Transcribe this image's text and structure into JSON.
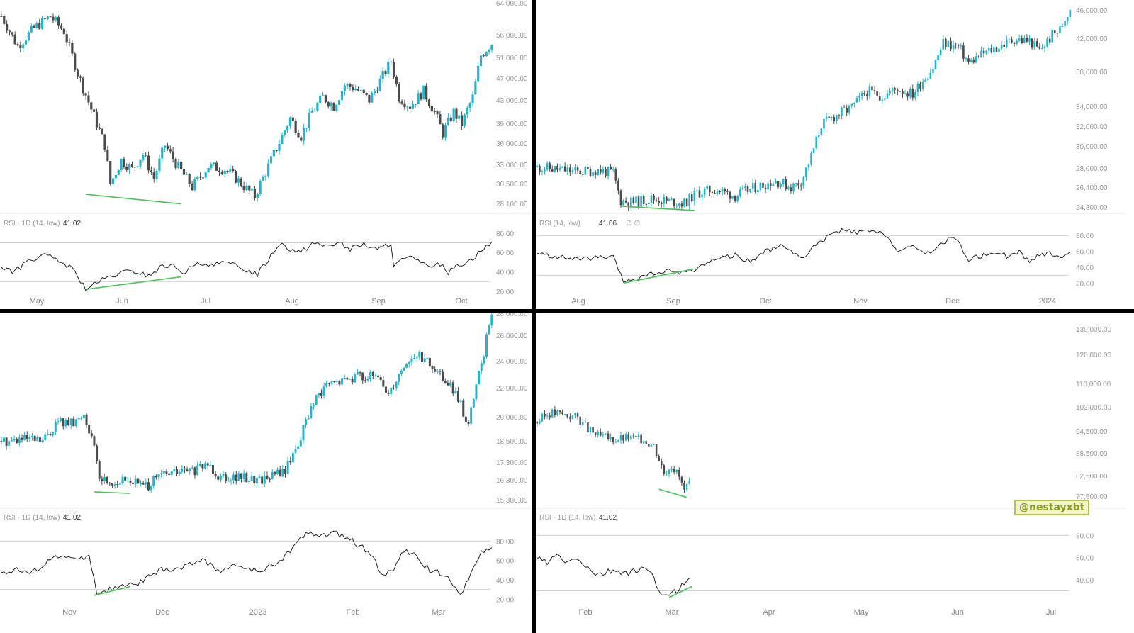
{
  "colors": {
    "up": "#26b4c6",
    "down": "#4b4b4b",
    "divergence": "#4cc15a",
    "rsi_line": "#222222",
    "grid": "#cfcfcf",
    "axis_text": "#9a9a9a",
    "separator": "#000000"
  },
  "watermark": "@nestayxbt",
  "chart_data": [
    {
      "type": "candlestick",
      "panel": "top-left",
      "price_ticks": [
        "64,000.00",
        "56,000.00",
        "51,000.00",
        "47,000.00",
        "43,000.00",
        "39,000.00",
        "36,000.00",
        "33,000.00",
        "30,500.00",
        "28,100.00"
      ],
      "price_range": [
        27000,
        64000
      ],
      "x_labels": [
        "May",
        "Jun",
        "Jul",
        "Aug",
        "Sep",
        "Oct"
      ],
      "price_path": [
        [
          0,
          60000
        ],
        [
          6,
          55000
        ],
        [
          12,
          58000
        ],
        [
          18,
          60000
        ],
        [
          23,
          57500
        ],
        [
          28,
          50500
        ],
        [
          33,
          44500
        ],
        [
          38,
          38500
        ],
        [
          40,
          32000
        ],
        [
          44,
          36000
        ],
        [
          48,
          34500
        ],
        [
          52,
          37000
        ],
        [
          56,
          33000
        ],
        [
          60,
          38500
        ],
        [
          64,
          35500
        ],
        [
          70,
          31500
        ],
        [
          76,
          35000
        ],
        [
          82,
          34500
        ],
        [
          86,
          33000
        ],
        [
          90,
          31200
        ],
        [
          93,
          30000
        ],
        [
          97,
          34000
        ],
        [
          101,
          38000
        ],
        [
          106,
          43000
        ],
        [
          110,
          40000
        ],
        [
          114,
          44000
        ],
        [
          118,
          46500
        ],
        [
          122,
          45000
        ],
        [
          126,
          48500
        ],
        [
          130,
          48000
        ],
        [
          135,
          46000
        ],
        [
          140,
          50000
        ],
        [
          143,
          52500
        ],
        [
          146,
          46500
        ],
        [
          150,
          45000
        ],
        [
          155,
          47500
        ],
        [
          159,
          44000
        ],
        [
          162,
          40500
        ],
        [
          166,
          44000
        ],
        [
          169,
          42000
        ],
        [
          173,
          46500
        ],
        [
          176,
          53500
        ],
        [
          180,
          55500
        ]
      ],
      "divergence_price": {
        "from": [
          31,
          30300
        ],
        "to": [
          66,
          28700
        ]
      },
      "rsi": {
        "label": "RSI · 1D (14, low)",
        "value": "41.02",
        "ticks": [
          "80.00",
          "60.00",
          "40.00",
          "20.00"
        ],
        "levels": [
          70,
          30
        ],
        "range": [
          20,
          85
        ],
        "path": [
          [
            0,
            45
          ],
          [
            5,
            40
          ],
          [
            10,
            52
          ],
          [
            15,
            57
          ],
          [
            20,
            53
          ],
          [
            25,
            45
          ],
          [
            28,
            36
          ],
          [
            31,
            22
          ],
          [
            36,
            30
          ],
          [
            42,
            37
          ],
          [
            48,
            41
          ],
          [
            54,
            36
          ],
          [
            60,
            47
          ],
          [
            64,
            45
          ],
          [
            67,
            40
          ],
          [
            72,
            47
          ],
          [
            78,
            49
          ],
          [
            84,
            48
          ],
          [
            90,
            42
          ],
          [
            94,
            38
          ],
          [
            98,
            53
          ],
          [
            102,
            70
          ],
          [
            106,
            64
          ],
          [
            110,
            60
          ],
          [
            114,
            70
          ],
          [
            118,
            67
          ],
          [
            124,
            70
          ],
          [
            128,
            63
          ],
          [
            133,
            69
          ],
          [
            138,
            62
          ],
          [
            143,
            70
          ],
          [
            144,
            48
          ],
          [
            150,
            55
          ],
          [
            156,
            45
          ],
          [
            160,
            50
          ],
          [
            164,
            40
          ],
          [
            168,
            48
          ],
          [
            172,
            52
          ],
          [
            176,
            62
          ],
          [
            180,
            70
          ]
        ],
        "divergence": {
          "from": [
            31,
            22
          ],
          "to": [
            66,
            35
          ]
        }
      }
    },
    {
      "type": "candlestick",
      "panel": "top-right",
      "price_ticks": [
        "46,000.00",
        "42,000.00",
        "38,000.00",
        "34,000.00",
        "32,000.00",
        "30,000.00",
        "28,000.00",
        "26,400.00",
        "24,800.00"
      ],
      "price_range": [
        24200,
        47200
      ],
      "x_labels": [
        "Aug",
        "Sep",
        "Oct",
        "Nov",
        "Dec",
        "2024"
      ],
      "price_path": [
        [
          0,
          29500
        ],
        [
          8,
          29300
        ],
        [
          16,
          29000
        ],
        [
          24,
          29200
        ],
        [
          30,
          28900
        ],
        [
          33,
          26000
        ],
        [
          38,
          25800
        ],
        [
          45,
          26200
        ],
        [
          52,
          25900
        ],
        [
          58,
          25700
        ],
        [
          63,
          26800
        ],
        [
          70,
          27200
        ],
        [
          78,
          26500
        ],
        [
          86,
          27400
        ],
        [
          94,
          28100
        ],
        [
          100,
          27400
        ],
        [
          104,
          28000
        ],
        [
          108,
          30600
        ],
        [
          112,
          34000
        ],
        [
          118,
          35000
        ],
        [
          124,
          35800
        ],
        [
          130,
          37500
        ],
        [
          136,
          37000
        ],
        [
          142,
          37800
        ],
        [
          148,
          37200
        ],
        [
          152,
          38700
        ],
        [
          156,
          40000
        ],
        [
          160,
          42600
        ],
        [
          166,
          42200
        ],
        [
          170,
          40500
        ],
        [
          176,
          41500
        ],
        [
          182,
          42200
        ],
        [
          188,
          43000
        ],
        [
          194,
          42800
        ],
        [
          198,
          41800
        ],
        [
          203,
          43400
        ],
        [
          206,
          44000
        ],
        [
          210,
          46300
        ]
      ],
      "divergence_price": {
        "from": [
          33,
          25400
        ],
        "to": [
          62,
          24950
        ]
      },
      "rsi": {
        "label": "RSI (14, low)",
        "value": "41.06",
        "suffix": "∅ ∅",
        "ticks": [
          "80.00",
          "60.00",
          "40.00",
          "20.00"
        ],
        "levels": [
          80,
          30
        ],
        "range": [
          15,
          90
        ],
        "path": [
          [
            0,
            57
          ],
          [
            8,
            53
          ],
          [
            16,
            50
          ],
          [
            24,
            52
          ],
          [
            30,
            52
          ],
          [
            34,
            22
          ],
          [
            40,
            27
          ],
          [
            46,
            32
          ],
          [
            52,
            35
          ],
          [
            58,
            34
          ],
          [
            62,
            36
          ],
          [
            66,
            45
          ],
          [
            72,
            52
          ],
          [
            78,
            55
          ],
          [
            84,
            47
          ],
          [
            90,
            60
          ],
          [
            96,
            66
          ],
          [
            100,
            62
          ],
          [
            104,
            50
          ],
          [
            108,
            63
          ],
          [
            112,
            72
          ],
          [
            116,
            82
          ],
          [
            120,
            86
          ],
          [
            126,
            84
          ],
          [
            132,
            85
          ],
          [
            138,
            80
          ],
          [
            142,
            60
          ],
          [
            148,
            65
          ],
          [
            154,
            58
          ],
          [
            160,
            70
          ],
          [
            164,
            80
          ],
          [
            166,
            70
          ],
          [
            170,
            50
          ],
          [
            176,
            55
          ],
          [
            182,
            60
          ],
          [
            186,
            52
          ],
          [
            190,
            60
          ],
          [
            194,
            47
          ],
          [
            198,
            55
          ],
          [
            202,
            58
          ],
          [
            206,
            53
          ],
          [
            210,
            58
          ]
        ],
        "divergence": {
          "from": [
            34,
            20
          ],
          "to": [
            62,
            38
          ]
        }
      }
    },
    {
      "type": "candlestick",
      "panel": "bottom-left",
      "price_ticks": [
        "28,000.00",
        "26,000.00",
        "24,000.00",
        "22,000.00",
        "20,000.00",
        "18,500.00",
        "17,300.00",
        "16,300.00",
        "15,300.00"
      ],
      "price_range": [
        14700,
        28200
      ],
      "x_labels": [
        "Nov",
        "Dec",
        "2023",
        "Feb",
        "Mar"
      ],
      "price_path": [
        [
          0,
          19200
        ],
        [
          8,
          19300
        ],
        [
          16,
          19200
        ],
        [
          22,
          20500
        ],
        [
          28,
          20300
        ],
        [
          32,
          21000
        ],
        [
          35,
          19500
        ],
        [
          38,
          16800
        ],
        [
          44,
          16500
        ],
        [
          50,
          16700
        ],
        [
          56,
          16200
        ],
        [
          62,
          17000
        ],
        [
          68,
          17200
        ],
        [
          76,
          17300
        ],
        [
          80,
          17800
        ],
        [
          84,
          17000
        ],
        [
          90,
          16900
        ],
        [
          100,
          16700
        ],
        [
          110,
          17300
        ],
        [
          116,
          19500
        ],
        [
          120,
          21400
        ],
        [
          126,
          22800
        ],
        [
          132,
          23100
        ],
        [
          138,
          23500
        ],
        [
          146,
          23300
        ],
        [
          150,
          22300
        ],
        [
          156,
          24200
        ],
        [
          162,
          24800
        ],
        [
          168,
          23800
        ],
        [
          174,
          22800
        ],
        [
          178,
          21500
        ],
        [
          181,
          20200
        ],
        [
          184,
          22800
        ],
        [
          187,
          25000
        ],
        [
          190,
          27600
        ]
      ],
      "divergence_price": {
        "from": [
          36,
          15900
        ],
        "to": [
          50,
          15800
        ]
      },
      "rsi": {
        "label": "RSI · 1D (14, low)",
        "value": "41.02",
        "ticks": [
          "80.00",
          "60.00",
          "40.00",
          "20.00"
        ],
        "levels": [
          80,
          30
        ],
        "range": [
          18,
          92
        ],
        "path": [
          [
            0,
            48
          ],
          [
            6,
            50
          ],
          [
            12,
            47
          ],
          [
            18,
            60
          ],
          [
            24,
            65
          ],
          [
            30,
            60
          ],
          [
            34,
            67
          ],
          [
            37,
            26
          ],
          [
            42,
            30
          ],
          [
            48,
            33
          ],
          [
            54,
            38
          ],
          [
            62,
            50
          ],
          [
            70,
            52
          ],
          [
            78,
            62
          ],
          [
            84,
            49
          ],
          [
            90,
            55
          ],
          [
            100,
            48
          ],
          [
            108,
            60
          ],
          [
            114,
            75
          ],
          [
            118,
            90
          ],
          [
            124,
            85
          ],
          [
            130,
            88
          ],
          [
            136,
            80
          ],
          [
            142,
            70
          ],
          [
            148,
            45
          ],
          [
            152,
            50
          ],
          [
            156,
            70
          ],
          [
            160,
            65
          ],
          [
            166,
            50
          ],
          [
            172,
            46
          ],
          [
            178,
            25
          ],
          [
            182,
            45
          ],
          [
            186,
            70
          ],
          [
            190,
            73
          ]
        ],
        "divergence": {
          "from": [
            36,
            24
          ],
          "to": [
            50,
            33
          ]
        }
      }
    },
    {
      "type": "candlestick",
      "panel": "bottom-right",
      "price_ticks": [
        "130,000.00",
        "120,000.00",
        "110,000.00",
        "102,000.00",
        "94,500.00",
        "88,500.00",
        "82,500.00",
        "77,500.00"
      ],
      "price_range": [
        74000,
        134000
      ],
      "x_labels": [
        "Feb",
        "Mar",
        "Apr",
        "May",
        "Jun",
        "Jul"
      ],
      "price_path": [
        [
          0,
          101000
        ],
        [
          5,
          104000
        ],
        [
          10,
          103500
        ],
        [
          16,
          102500
        ],
        [
          20,
          98500
        ],
        [
          24,
          96500
        ],
        [
          30,
          95500
        ],
        [
          36,
          96000
        ],
        [
          42,
          95500
        ],
        [
          46,
          93500
        ],
        [
          50,
          85000
        ],
        [
          53,
          87500
        ],
        [
          56,
          83500
        ],
        [
          58,
          79000
        ],
        [
          60,
          81000
        ]
      ],
      "divergence_price": {
        "from": [
          48,
          79600
        ],
        "to": [
          59,
          77000
        ]
      },
      "rsi": {
        "label": "RSI · 1D (14, low)",
        "value": "41.02",
        "ticks": [
          "80.00",
          "60.00",
          "40.00"
        ],
        "levels": [
          80,
          30
        ],
        "range": [
          22,
          86
        ],
        "path": [
          [
            0,
            60
          ],
          [
            4,
            55
          ],
          [
            8,
            62
          ],
          [
            12,
            55
          ],
          [
            16,
            60
          ],
          [
            20,
            50
          ],
          [
            24,
            44
          ],
          [
            30,
            48
          ],
          [
            36,
            46
          ],
          [
            42,
            50
          ],
          [
            46,
            42
          ],
          [
            48,
            30
          ],
          [
            52,
            24
          ],
          [
            56,
            33
          ],
          [
            60,
            42
          ]
        ],
        "divergence": {
          "from": [
            52,
            24
          ],
          "to": [
            61,
            34
          ]
        }
      }
    }
  ]
}
